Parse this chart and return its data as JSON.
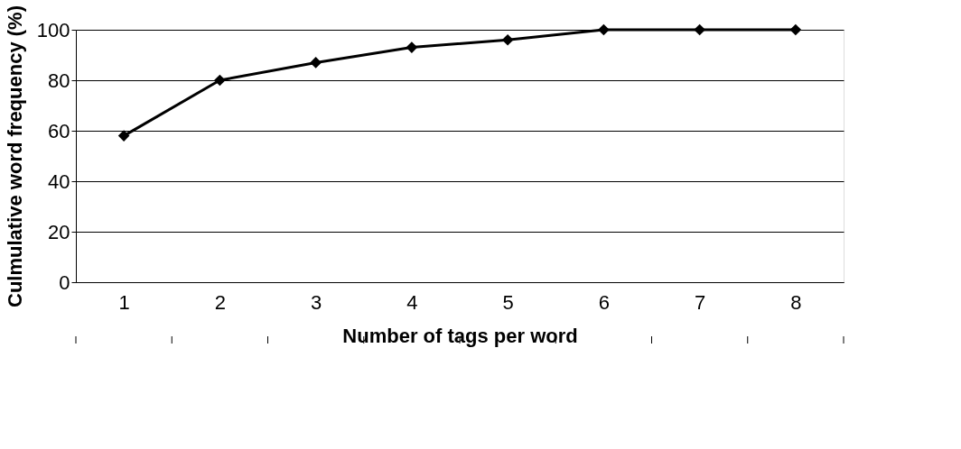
{
  "chart_data": {
    "type": "line",
    "xlabel": "Number of tags per word",
    "ylabel": "Culmulative word frequency (%)",
    "categories": [
      "1",
      "2",
      "3",
      "4",
      "5",
      "6",
      "7",
      "8"
    ],
    "series": [
      {
        "color": "#000000",
        "values": [
          58,
          80,
          87,
          93,
          96,
          100,
          100,
          100
        ]
      }
    ],
    "ylim": [
      0,
      100
    ],
    "yticks": [
      0,
      20,
      40,
      60,
      80,
      100
    ],
    "grid": "y",
    "marker": "diamond",
    "line_style": "solid",
    "legend": false
  }
}
